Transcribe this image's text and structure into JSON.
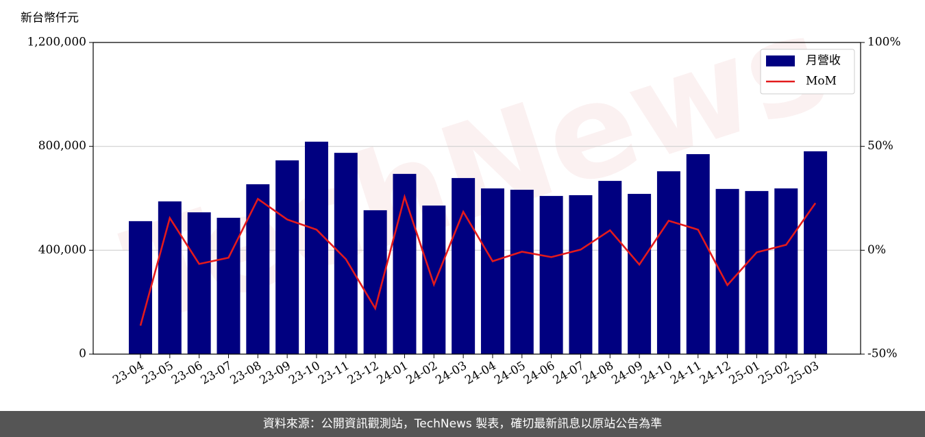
{
  "chart_data": {
    "type": "bar",
    "y_label": "新台幣仟元",
    "watermark": "TechNews",
    "categories": [
      "23-04",
      "23-05",
      "23-06",
      "23-07",
      "23-08",
      "23-09",
      "23-10",
      "23-11",
      "23-12",
      "24-01",
      "24-02",
      "24-03",
      "24-04",
      "24-05",
      "24-06",
      "24-07",
      "24-08",
      "24-09",
      "24-10",
      "24-11",
      "24-12",
      "25-01",
      "25-02",
      "25-03"
    ],
    "series": [
      {
        "name": "月營收",
        "type": "bar",
        "color": "#000080",
        "values": [
          512000,
          588000,
          546000,
          525000,
          654000,
          746000,
          818000,
          775000,
          554000,
          694000,
          572000,
          678000,
          638000,
          633000,
          609000,
          612000,
          667000,
          617000,
          704000,
          770000,
          636000,
          628000,
          638000,
          781000
        ]
      },
      {
        "name": "MoM",
        "type": "line",
        "axis": "y2",
        "color": "#e31a1c",
        "values": [
          -36.3,
          15.5,
          -6.6,
          -3.6,
          24.7,
          14.8,
          9.9,
          -4.3,
          -28.0,
          25.7,
          -16.5,
          18.5,
          -5.3,
          -0.7,
          -3.3,
          0.3,
          9.6,
          -6.9,
          14.2,
          9.9,
          -16.8,
          -1.0,
          2.6,
          22.7
        ]
      }
    ],
    "ylim": [
      0,
      1200000
    ],
    "yticks": [
      0,
      {
        "value": 400000,
        "label": "400,000"
      },
      {
        "value": 800000,
        "label": "800,000"
      },
      {
        "value": 1200000,
        "label": "1,200,000"
      }
    ],
    "y2lim": [
      -50,
      100
    ],
    "y2ticks": [
      {
        "value": -50,
        "label": "-50%"
      },
      {
        "value": 0,
        "label": "0%"
      },
      {
        "value": 50,
        "label": "50%"
      },
      {
        "value": 100,
        "label": "100%"
      }
    ],
    "grid": true,
    "legend": "upper right"
  },
  "footer": "資料來源：公開資訊觀測站，TechNews 製表，確切最新訊息以原站公告為準"
}
